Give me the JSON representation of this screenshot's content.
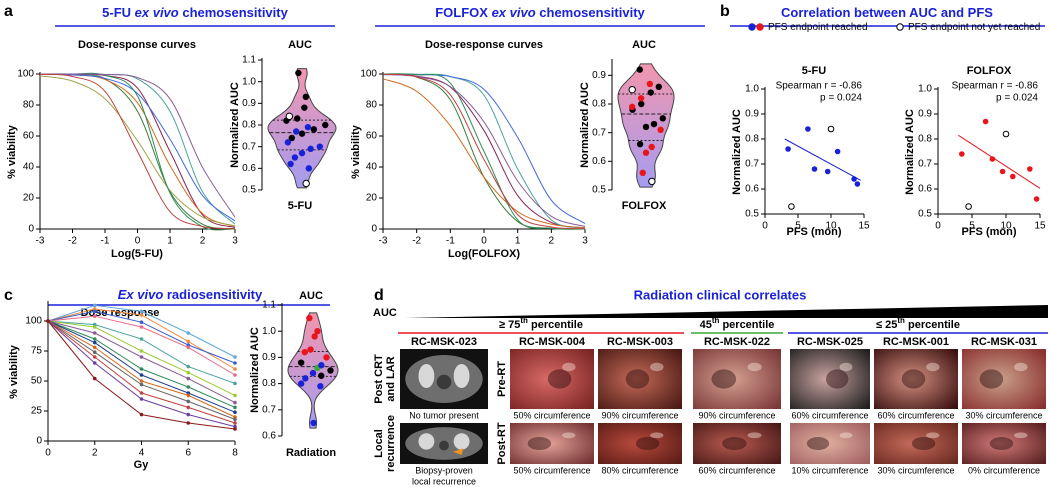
{
  "panel_labels": [
    "a",
    "b",
    "c",
    "d"
  ],
  "titles": [
    [
      {
        "text": "5-FU "
      },
      {
        "text": "ex vivo",
        "italic": true
      },
      {
        "text": " chemosensitivity"
      }
    ],
    [
      {
        "text": "FOLFOX "
      },
      {
        "text": "ex vivo",
        "italic": true
      },
      {
        "text": " chemosensitivity"
      }
    ],
    [
      {
        "text": "Correlation between AUC and PFS"
      }
    ],
    [
      {
        "text": "Ex vivo",
        "italic": true
      },
      {
        "text": " radiosensitivity"
      }
    ]
  ],
  "correlation_legend": [
    {
      "label": "PFS endpoint reached",
      "colors": [
        "#1a22d8",
        "#e8161b"
      ]
    },
    {
      "label": "PFS endpoint not yet reached",
      "colors": [
        "#ffffff"
      ]
    }
  ],
  "chart_data": [
    {
      "type": "line",
      "smooth": true,
      "title": "Dose-response curves",
      "x_label": "Log(5-FU)",
      "y_label": "% viability",
      "x": [
        -3,
        -2,
        -1,
        0,
        1,
        2,
        3
      ],
      "xlim": [
        -3,
        3
      ],
      "xticks": [
        -3,
        -2,
        -1,
        0,
        1,
        2,
        3
      ],
      "ylim": [
        0,
        100
      ],
      "yticks": [
        0,
        20,
        40,
        60,
        80,
        100
      ],
      "series": [
        {
          "color": "#3a7d3a",
          "values": [
            100,
            99.7,
            96.9,
            76.0,
            24.0,
            3.1,
            0.3
          ]
        },
        {
          "color": "#8b2252",
          "values": [
            100,
            99.9,
            99.0,
            90.9,
            50,
            9.1,
            1.0
          ]
        },
        {
          "color": "#4aa3a0",
          "values": [
            100,
            100,
            99.7,
            96.9,
            76.0,
            24.0,
            3.1
          ]
        },
        {
          "color": "#d2691e",
          "values": [
            99.9,
            99.4,
            96.5,
            81.4,
            40.9,
            9.9,
            1.7
          ]
        },
        {
          "color": "#4169e1",
          "values": [
            99.9,
            99.4,
            97.2,
            87.4,
            58.0,
            21.6,
            5.2
          ]
        },
        {
          "color": "#a3a34a",
          "values": [
            98.8,
            95.4,
            84.0,
            56.9,
            24.9,
            7.7,
            2.0
          ]
        },
        {
          "color": "#2e8b57",
          "values": [
            100,
            100,
            99.2,
            85.8,
            23.2,
            1.5,
            0.1
          ]
        },
        {
          "color": "#8a5a9c",
          "values": [
            100,
            100,
            99.7,
            97.7,
            84.0,
            39.8,
            7.7
          ]
        },
        {
          "color": "#c04040",
          "values": [
            99.8,
            98.4,
            88.8,
            50,
            11.2,
            1.6,
            0.2
          ]
        }
      ]
    },
    {
      "type": "violin",
      "title": "AUC",
      "x_label": "5-FU",
      "y_label": "Normalized AUC",
      "ylim": [
        0.5,
        1.1
      ],
      "yticks": [
        0.5,
        0.6,
        0.7,
        0.8,
        0.9,
        {
          "value": 1,
          "label": "1.0"
        },
        1.1
      ],
      "series": [
        {
          "color": "#000000",
          "values": [
            1.04,
            0.93,
            0.88,
            0.83,
            0.82,
            0.8,
            0.78,
            0.76,
            0.74
          ]
        },
        {
          "color": "#1a22d8",
          "values": [
            0.79,
            0.77,
            0.72,
            0.7,
            0.69,
            0.67,
            0.65,
            0.62,
            0.6
          ]
        },
        {
          "color": "#ffffff",
          "values": [
            0.84,
            0.53
          ]
        }
      ]
    },
    {
      "type": "line",
      "smooth": true,
      "title": "Dose-response curves",
      "x_label": "Log(FOLFOX)",
      "y_label": "% viability",
      "x": [
        -3,
        -2,
        -1,
        0,
        1,
        2,
        3
      ],
      "xlim": [
        -3,
        3
      ],
      "xticks": [
        -3,
        -2,
        -1,
        0,
        1,
        2,
        3
      ],
      "ylim": [
        0,
        100
      ],
      "yticks": [
        0,
        20,
        40,
        60,
        80,
        100
      ],
      "series": [
        {
          "color": "#3a7d3a",
          "values": [
            99.8,
            98.0,
            83.4,
            33.4,
            4.8,
            0.5,
            0.1
          ]
        },
        {
          "color": "#8b2252",
          "values": [
            99.8,
            98.6,
            91.6,
            63.5,
            21.6,
            4.2,
            0.7
          ]
        },
        {
          "color": "#4aa3a0",
          "values": [
            100,
            99.8,
            98.4,
            86.3,
            38.7,
            5.9,
            0.6
          ]
        },
        {
          "color": "#d2691e",
          "values": [
            96.9,
            88.8,
            66.6,
            33.4,
            11.2,
            3.1,
            0.8
          ]
        },
        {
          "color": "#4169e1",
          "values": [
            100,
            99.7,
            98.3,
            90.1,
            59.1,
            18.6,
            3.5
          ]
        },
        {
          "color": "#2e8b57",
          "values": [
            100,
            99.6,
            94.1,
            50,
            5.9,
            0.4,
            0.0
          ]
        },
        {
          "color": "#8a5a9c",
          "values": [
            99.6,
            98.3,
            91.8,
            69.1,
            30.9,
            8.2,
            1.7
          ]
        },
        {
          "color": "#c04040",
          "values": [
            99.8,
            98.1,
            86.6,
            44.8,
            9.3,
            1.3,
            0.2
          ]
        }
      ]
    },
    {
      "type": "violin",
      "title": "AUC",
      "x_label": "FOLFOX",
      "y_label": "Normalized AUC",
      "ylim": [
        0.5,
        0.95
      ],
      "yticks": [
        0.5,
        0.6,
        0.7,
        0.8,
        0.9
      ],
      "series": [
        {
          "color": "#000000",
          "values": [
            0.92,
            0.86,
            0.84,
            0.8,
            0.78,
            0.75,
            0.73,
            0.72,
            0.66
          ]
        },
        {
          "color": "#e8161b",
          "values": [
            0.87,
            0.82,
            0.79,
            0.71,
            0.65,
            0.63,
            0.56
          ]
        },
        {
          "color": "#ffffff",
          "values": [
            0.85,
            0.53
          ]
        }
      ]
    },
    {
      "type": "scatter",
      "fit": true,
      "title": "5-FU",
      "x_label": "PFS (mon)",
      "y_label": "Normalized AUC",
      "annotations": [
        "Spearman r = -0.86",
        "p = 0.024"
      ],
      "xlim": [
        0,
        15
      ],
      "xticks": [
        0,
        5,
        10,
        15
      ],
      "ylim": [
        0.5,
        1.0
      ],
      "yticks": [
        0.5,
        0.6,
        0.7,
        0.8,
        0.9,
        {
          "value": 1,
          "label": "1.0"
        }
      ],
      "series": [
        {
          "color": "#1a22d8",
          "x": [
            3.5,
            6.5,
            7.5,
            9.5,
            11,
            13.5,
            14
          ],
          "values": [
            0.76,
            0.84,
            0.68,
            0.67,
            0.75,
            0.64,
            0.62
          ]
        },
        {
          "color": "#ffffff",
          "x": [
            4,
            10
          ],
          "values": [
            0.53,
            0.84
          ]
        }
      ]
    },
    {
      "type": "scatter",
      "fit": true,
      "title": "FOLFOX",
      "x_label": "PFS (mon)",
      "y_label": "Normalized AUC",
      "annotations": [
        "Spearman r = -0.86",
        "p = 0.024"
      ],
      "xlim": [
        0,
        15
      ],
      "xticks": [
        0,
        5,
        10,
        15
      ],
      "ylim": [
        0.5,
        1.0
      ],
      "yticks": [
        0.5,
        0.6,
        0.7,
        0.8,
        0.9,
        {
          "value": 1,
          "label": "1.0"
        }
      ],
      "series": [
        {
          "color": "#e8161b",
          "x": [
            3.5,
            7,
            8,
            9.5,
            11,
            13.5,
            14.5
          ],
          "values": [
            0.74,
            0.87,
            0.72,
            0.67,
            0.65,
            0.68,
            0.56
          ]
        },
        {
          "color": "#ffffff",
          "x": [
            4.5,
            10
          ],
          "values": [
            0.53,
            0.82
          ]
        }
      ]
    },
    {
      "type": "line",
      "markers": true,
      "title": "Dose response",
      "x_label": "Gy",
      "y_label": "% viability",
      "x": [
        0,
        2,
        4,
        6,
        8
      ],
      "xlim": [
        0,
        8
      ],
      "xticks": [
        0,
        2,
        4,
        6,
        8
      ],
      "ylim": [
        0,
        115
      ],
      "yticks": [
        0,
        25,
        50,
        75,
        100
      ],
      "series": [
        {
          "color": "#5fa8d8",
          "values": [
            100,
            113,
            108,
            90,
            70
          ]
        },
        {
          "color": "#f08a3c",
          "values": [
            100,
            110,
            105,
            83,
            60
          ]
        },
        {
          "color": "#3a5fcd",
          "values": [
            100,
            108,
            99,
            80,
            65
          ]
        },
        {
          "color": "#e86a8a",
          "values": [
            100,
            104,
            95,
            78,
            55
          ]
        },
        {
          "color": "#4aa3a0",
          "values": [
            100,
            97,
            85,
            62,
            48
          ]
        },
        {
          "color": "#9acd32",
          "values": [
            100,
            95,
            75,
            57,
            38
          ]
        },
        {
          "color": "#8a5a9c",
          "values": [
            100,
            90,
            70,
            52,
            32
          ]
        },
        {
          "color": "#2e8b57",
          "values": [
            100,
            85,
            60,
            45,
            28
          ]
        },
        {
          "color": "#1c3f8f",
          "values": [
            100,
            82,
            55,
            40,
            24
          ]
        },
        {
          "color": "#d2691e",
          "values": [
            100,
            78,
            50,
            38,
            20
          ]
        },
        {
          "color": "#666666",
          "values": [
            100,
            74,
            47,
            33,
            18
          ]
        },
        {
          "color": "#c04040",
          "values": [
            100,
            70,
            40,
            28,
            15
          ]
        },
        {
          "color": "#6b3fa0",
          "values": [
            100,
            65,
            35,
            22,
            12
          ]
        },
        {
          "color": "#8b1a1a",
          "values": [
            100,
            52,
            22,
            15,
            10
          ]
        }
      ]
    },
    {
      "type": "violin",
      "title": "AUC",
      "x_label": "Radiation",
      "y_label": "Normalized AUC",
      "ylim": [
        0.6,
        1.1
      ],
      "yticks": [
        0.6,
        0.7,
        0.8,
        0.9,
        {
          "value": 1,
          "label": "1.0"
        },
        1.1
      ],
      "series": [
        {
          "color": "#e8161b",
          "values": [
            1.05,
            1.0,
            0.98,
            0.93,
            0.92,
            0.9
          ]
        },
        {
          "color": "#3aa935",
          "values": [
            0.86
          ]
        },
        {
          "color": "#000000",
          "values": [
            0.88,
            0.85,
            0.83
          ]
        },
        {
          "color": "#1a22d8",
          "values": [
            0.87,
            0.84,
            0.82,
            0.8,
            0.79,
            0.65
          ]
        }
      ]
    }
  ],
  "clinical": {
    "title": "Radiation clinical correlates",
    "gradient_label": "AUC",
    "ct_row_labels": [
      [
        "Post CRT",
        "and LAR"
      ],
      [
        "Local",
        "recurrence"
      ]
    ],
    "endoscopy_row_labels": [
      "Pre-RT",
      "Post-RT"
    ],
    "groups": [
      {
        "label": [
          {
            "text": "≥ 75"
          },
          {
            "text": "th",
            "sup": true
          },
          {
            "text": " percentile"
          }
        ],
        "color": "#e8161b",
        "columns": [
          {
            "name": "RC-MSK-023",
            "captions": [
              [
                "No tumor present"
              ],
              [
                "Biopsy-proven",
                "local recurrence"
              ]
            ]
          },
          {
            "name": "RC-MSK-004",
            "captions": [
              [
                "50% circumference"
              ],
              [
                "50% circumference"
              ]
            ]
          },
          {
            "name": "RC-MSK-003",
            "captions": [
              [
                "90% circumference"
              ],
              [
                "80% circumference"
              ]
            ]
          }
        ]
      },
      {
        "label": [
          {
            "text": "45"
          },
          {
            "text": "th",
            "sup": true
          },
          {
            "text": " percentile"
          }
        ],
        "color": "#3aa935",
        "columns": [
          {
            "name": "RC-MSK-022",
            "captions": [
              [
                "90% circumference"
              ],
              [
                "60% circumference"
              ]
            ]
          }
        ]
      },
      {
        "label": [
          {
            "text": "≤ 25"
          },
          {
            "text": "th",
            "sup": true
          },
          {
            "text": " percentile"
          }
        ],
        "color": "#1a22d8",
        "columns": [
          {
            "name": "RC-MSK-025",
            "captions": [
              [
                "60% circumference"
              ],
              [
                "10% circumference"
              ]
            ]
          },
          {
            "name": "RC-MSK-001",
            "captions": [
              [
                "60% circumference"
              ],
              [
                "30% circumference"
              ]
            ]
          },
          {
            "name": "RC-MSK-031",
            "captions": [
              [
                "30% circumference"
              ],
              [
                "0% circumference"
              ]
            ]
          }
        ]
      }
    ]
  }
}
